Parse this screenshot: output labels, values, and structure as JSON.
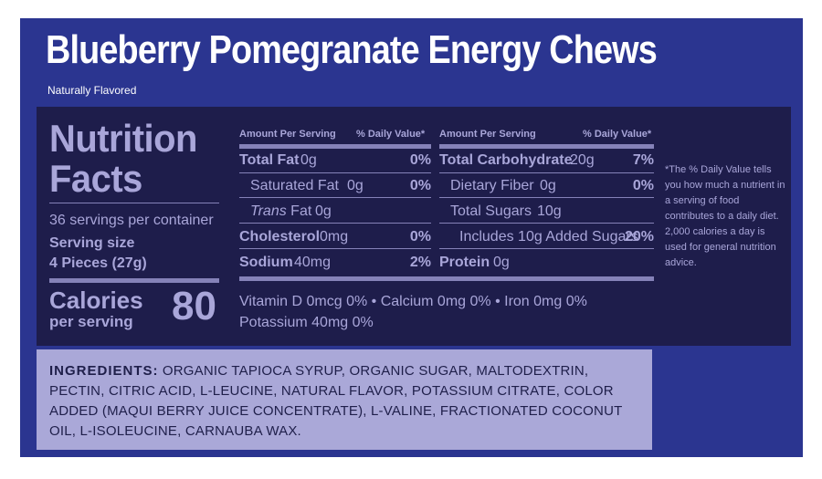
{
  "header": {
    "title": "Blueberry Pomegranate Energy Chews",
    "subtitle": "Naturally Flavored"
  },
  "facts": {
    "title_line1": "Nutrition",
    "title_line2": "Facts",
    "servings_per_container": "36 servings per container",
    "serving_size_label": "Serving size",
    "serving_size_value": "4 Pieces (27g)",
    "calories_label": "Calories",
    "calories_sub": "per serving",
    "calories_value": "80",
    "left_column": {
      "header_amount": "Amount Per Serving",
      "header_dv": "% Daily Value*",
      "rows": [
        {
          "label": "Total Fat",
          "amount": "0g",
          "dv": "0%"
        },
        {
          "label": "Saturated Fat",
          "amount": "0g",
          "dv": "0%"
        },
        {
          "label_italic": "Trans",
          "label": "Fat",
          "amount": "0g",
          "dv": ""
        },
        {
          "label": "Cholesterol",
          "amount": "0mg",
          "dv": "0%"
        },
        {
          "label": "Sodium",
          "amount": "40mg",
          "dv": "2%"
        }
      ]
    },
    "right_column": {
      "header_amount": "Amount Per Serving",
      "header_dv": "% Daily Value*",
      "rows": [
        {
          "label": "Total Carbohydrate",
          "amount": "20g",
          "dv": "7%"
        },
        {
          "label": "Dietary Fiber",
          "amount": "0g",
          "dv": "0%"
        },
        {
          "label": "Total Sugars",
          "amount": "10g",
          "dv": ""
        },
        {
          "label": "Includes 10g Added Sugars",
          "amount": "",
          "dv": "20%"
        },
        {
          "label": "Protein",
          "amount": "0g",
          "dv": ""
        }
      ]
    },
    "vitamins_line1": "Vitamin D 0mcg 0%  •  Calcium 0mg 0%  •  Iron 0mg 0%",
    "vitamins_line2": "Potassium 40mg 0%",
    "footnote": "*The % Daily Value tells you how much a nutrient in a serving of food contributes to a daily diet. 2,000 calories a day is used for general nutrition advice."
  },
  "ingredients": {
    "label": "INGREDIENTS:",
    "text": "ORGANIC TAPIOCA SYRUP, ORGANIC SUGAR, MALTODEXTRIN, PECTIN, CITRIC ACID, L-LEUCINE, NATURAL FLAVOR, POTASSIUM CITRATE, COLOR ADDED (MAQUI BERRY JUICE CONCENTRATE), L-VALINE, FRACTIONATED COCONUT OIL, L-ISOLEUCINE, CARNAUBA WAX."
  },
  "colors": {
    "panel_blue": "#2b3590",
    "facts_navy": "#1e1d4b",
    "text_lavender": "#a9a6d9",
    "ingredients_bg": "#aaa8d8"
  }
}
